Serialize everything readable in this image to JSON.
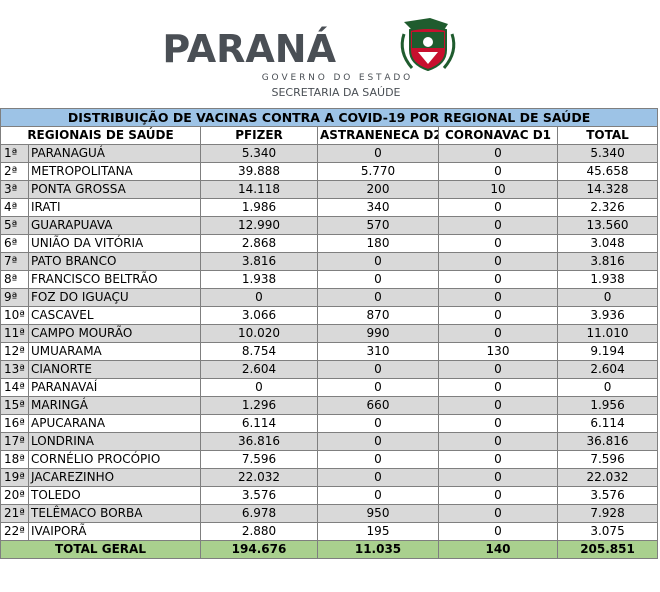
{
  "header": {
    "brand": "PARANÁ",
    "subtitle": "G O V E R N O   D O   E S T A D O",
    "department": "SECRETARIA DA SAÚDE"
  },
  "table": {
    "title": "DISTRIBUIÇÃO DE VACINAS CONTRA A COVID-19 POR REGIONAL DE SAÚDE",
    "columns": [
      "REGIONAIS DE SAÚDE",
      "PFIZER",
      "ASTRANENECA D2",
      "CORONAVAC D1",
      "TOTAL"
    ],
    "rows": [
      [
        "1ª",
        "PARANAGUÁ",
        "5.340",
        "0",
        "0",
        "5.340"
      ],
      [
        "2ª",
        "METROPOLITANA",
        "39.888",
        "5.770",
        "0",
        "45.658"
      ],
      [
        "3ª",
        "PONTA GROSSA",
        "14.118",
        "200",
        "10",
        "14.328"
      ],
      [
        "4ª",
        "IRATI",
        "1.986",
        "340",
        "0",
        "2.326"
      ],
      [
        "5ª",
        "GUARAPUAVA",
        "12.990",
        "570",
        "0",
        "13.560"
      ],
      [
        "6ª",
        "UNIÃO DA VITÓRIA",
        "2.868",
        "180",
        "0",
        "3.048"
      ],
      [
        "7ª",
        "PATO BRANCO",
        "3.816",
        "0",
        "0",
        "3.816"
      ],
      [
        "8ª",
        "FRANCISCO BELTRÃO",
        "1.938",
        "0",
        "0",
        "1.938"
      ],
      [
        "9ª",
        "FOZ DO IGUAÇU",
        "0",
        "0",
        "0",
        "0"
      ],
      [
        "10ª",
        "CASCAVEL",
        "3.066",
        "870",
        "0",
        "3.936"
      ],
      [
        "11ª",
        "CAMPO MOURÃO",
        "10.020",
        "990",
        "0",
        "11.010"
      ],
      [
        "12ª",
        "UMUARAMA",
        "8.754",
        "310",
        "130",
        "9.194"
      ],
      [
        "13ª",
        "CIANORTE",
        "2.604",
        "0",
        "0",
        "2.604"
      ],
      [
        "14ª",
        "PARANAVAÍ",
        "0",
        "0",
        "0",
        "0"
      ],
      [
        "15ª",
        "MARINGÁ",
        "1.296",
        "660",
        "0",
        "1.956"
      ],
      [
        "16ª",
        "APUCARANA",
        "6.114",
        "0",
        "0",
        "6.114"
      ],
      [
        "17ª",
        "LONDRINA",
        "36.816",
        "0",
        "0",
        "36.816"
      ],
      [
        "18ª",
        "CORNÉLIO PROCÓPIO",
        "7.596",
        "0",
        "0",
        "7.596"
      ],
      [
        "19ª",
        "JACAREZINHO",
        "22.032",
        "0",
        "0",
        "22.032"
      ],
      [
        "20ª",
        "TOLEDO",
        "3.576",
        "0",
        "0",
        "3.576"
      ],
      [
        "21ª",
        "TELÊMACO BORBA",
        "6.978",
        "950",
        "0",
        "7.928"
      ],
      [
        "22ª",
        "IVAIPORÃ",
        "2.880",
        "195",
        "0",
        "3.075"
      ]
    ],
    "total": [
      "TOTAL GERAL",
      "194.676",
      "11.035",
      "140",
      "205.851"
    ]
  }
}
